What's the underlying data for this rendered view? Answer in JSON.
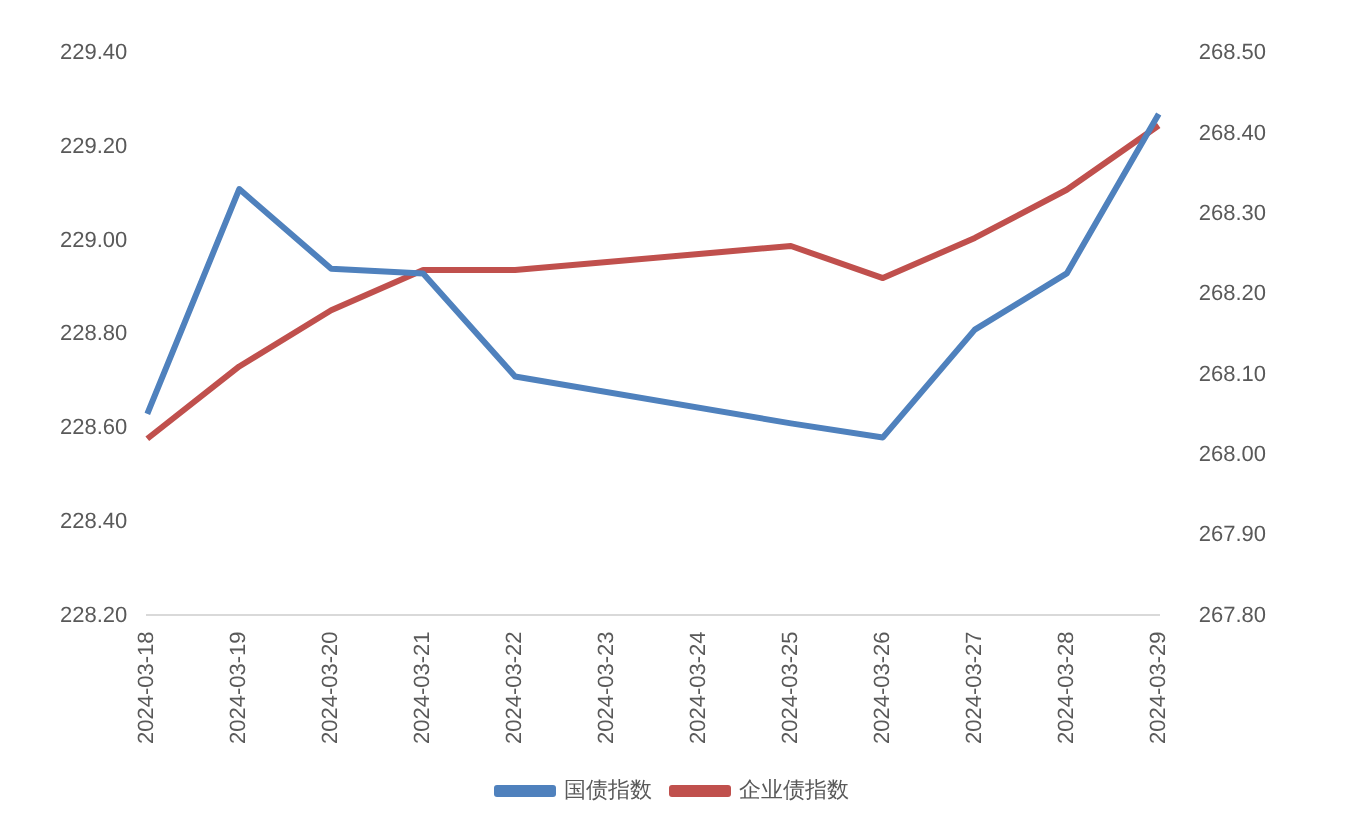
{
  "chart_data": {
    "type": "line",
    "categories": [
      "2024-03-18",
      "2024-03-19",
      "2024-03-20",
      "2024-03-21",
      "2024-03-22",
      "2024-03-23",
      "2024-03-24",
      "2024-03-25",
      "2024-03-26",
      "2024-03-27",
      "2024-03-28",
      "2024-03-29"
    ],
    "series": [
      {
        "name": "国债指数",
        "color": "#4f81bd",
        "values": [
          228.63,
          229.11,
          228.94,
          228.93,
          228.71,
          null,
          null,
          228.61,
          228.58,
          228.81,
          228.93,
          229.27
        ]
      },
      {
        "name": "企业债指数",
        "color": "#c0504d",
        "axis": "y2",
        "values": [
          268.02,
          268.11,
          268.18,
          268.23,
          268.23,
          null,
          null,
          268.26,
          268.22,
          268.27,
          268.33,
          268.41
        ]
      }
    ],
    "ylim": [
      228.2,
      229.4
    ],
    "yticks": [
      {
        "value": 228.2,
        "label": "228.20"
      },
      {
        "value": 228.4,
        "label": "228.40"
      },
      {
        "value": 228.6,
        "label": "228.60"
      },
      {
        "value": 228.8,
        "label": "228.80"
      },
      {
        "value": 229.0,
        "label": "229.00"
      },
      {
        "value": 229.2,
        "label": "229.20"
      },
      {
        "value": 229.4,
        "label": "229.40"
      }
    ],
    "y2lim": [
      267.8,
      268.5
    ],
    "y2ticks": [
      {
        "value": 267.8,
        "label": "267.80"
      },
      {
        "value": 267.9,
        "label": "267.90"
      },
      {
        "value": 268.0,
        "label": "268.00"
      },
      {
        "value": 268.1,
        "label": "268.10"
      },
      {
        "value": 268.2,
        "label": "268.20"
      },
      {
        "value": 268.3,
        "label": "268.30"
      },
      {
        "value": 268.4,
        "label": "268.40"
      },
      {
        "value": 268.5,
        "label": "268.50"
      }
    ],
    "grid": false,
    "legend": "bottom",
    "marker": "none",
    "line_style": "solid"
  }
}
